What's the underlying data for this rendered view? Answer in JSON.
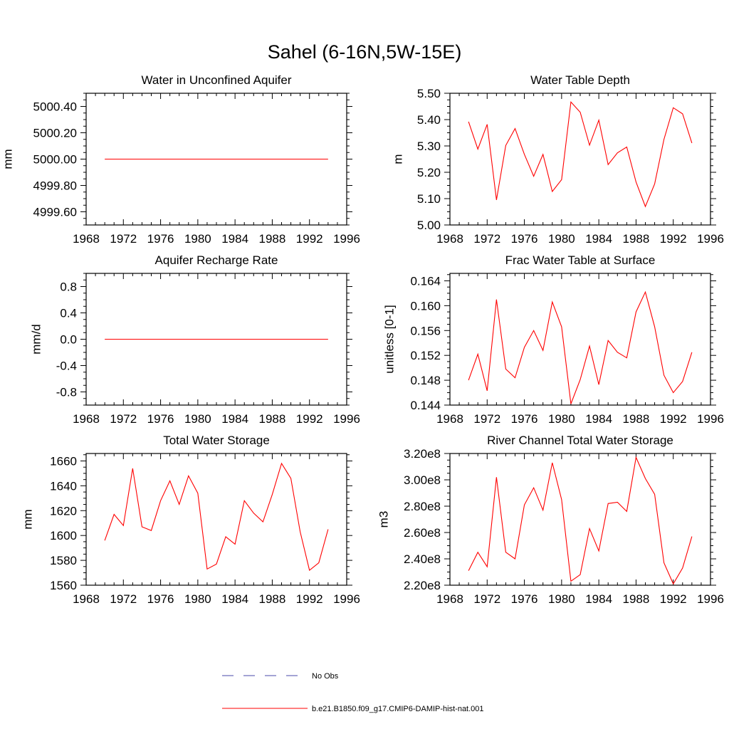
{
  "figure": {
    "title": "Sahel (6-16N,5W-15E)"
  },
  "legend": {
    "placement": "bottom-center",
    "entries": [
      {
        "label": "No Obs",
        "color": "#4a4aa8",
        "style": "dashed"
      },
      {
        "label": "b.e21.B1850.f09_g17.CMIP6-DAMIP-hist-nat.001",
        "color": "#ff0000",
        "style": "solid"
      }
    ]
  },
  "chart_data": [
    {
      "type": "line",
      "title": "Water in Unconfined Aquifer",
      "ylabel": "mm",
      "xlim": [
        1968,
        1996
      ],
      "ylim": [
        4999.5,
        5000.5
      ],
      "yticks": [
        4999.6,
        4999.8,
        5000.0,
        5000.2,
        5000.4
      ],
      "ytick_labels": [
        "4999.60",
        "4999.80",
        "5000.00",
        "5000.20",
        "5000.40"
      ],
      "xticks": [
        1968,
        1972,
        1976,
        1980,
        1984,
        1988,
        1992,
        1996
      ],
      "xtick_labels": [
        "1968",
        "1972",
        "1976",
        "1980",
        "1984",
        "1988",
        "1992",
        "1996"
      ],
      "x": [
        1970,
        1971,
        1972,
        1973,
        1974,
        1975,
        1976,
        1977,
        1978,
        1979,
        1980,
        1981,
        1982,
        1983,
        1984,
        1985,
        1986,
        1987,
        1988,
        1989,
        1990,
        1991,
        1992,
        1993,
        1994
      ],
      "series": [
        {
          "color": "#ff0000",
          "values": [
            5000,
            5000,
            5000,
            5000,
            5000,
            5000,
            5000,
            5000,
            5000,
            5000,
            5000,
            5000,
            5000,
            5000,
            5000,
            5000,
            5000,
            5000,
            5000,
            5000,
            5000,
            5000,
            5000,
            5000,
            5000
          ]
        }
      ]
    },
    {
      "type": "line",
      "title": "Water Table Depth",
      "ylabel": "m",
      "xlim": [
        1968,
        1996
      ],
      "ylim": [
        5.0,
        5.5
      ],
      "yticks": [
        5.0,
        5.1,
        5.2,
        5.3,
        5.4,
        5.5
      ],
      "ytick_labels": [
        "5.00",
        "5.10",
        "5.20",
        "5.30",
        "5.40",
        "5.50"
      ],
      "xticks": [
        1968,
        1972,
        1976,
        1980,
        1984,
        1988,
        1992,
        1996
      ],
      "xtick_labels": [
        "1968",
        "1972",
        "1976",
        "1980",
        "1984",
        "1988",
        "1992",
        "1996"
      ],
      "x": [
        1970,
        1971,
        1972,
        1973,
        1974,
        1975,
        1976,
        1977,
        1978,
        1979,
        1980,
        1981,
        1982,
        1983,
        1984,
        1985,
        1986,
        1987,
        1988,
        1989,
        1990,
        1991,
        1992,
        1993,
        1994
      ],
      "series": [
        {
          "color": "#ff0000",
          "values": [
            5.392,
            5.288,
            5.382,
            5.095,
            5.302,
            5.366,
            5.268,
            5.185,
            5.268,
            5.127,
            5.172,
            5.467,
            5.428,
            5.303,
            5.398,
            5.229,
            5.274,
            5.296,
            5.163,
            5.07,
            5.156,
            5.325,
            5.445,
            5.422,
            5.311
          ]
        }
      ]
    },
    {
      "type": "line",
      "title": "Aquifer Recharge Rate",
      "ylabel": "mm/d",
      "xlim": [
        1968,
        1996
      ],
      "ylim": [
        -1.0,
        1.0
      ],
      "yticks": [
        -0.8,
        -0.4,
        0.0,
        0.4,
        0.8
      ],
      "ytick_labels": [
        "-0.8",
        "-0.4",
        "0.0",
        "0.4",
        "0.8"
      ],
      "xticks": [
        1968,
        1972,
        1976,
        1980,
        1984,
        1988,
        1992,
        1996
      ],
      "xtick_labels": [
        "1968",
        "1972",
        "1976",
        "1980",
        "1984",
        "1988",
        "1992",
        "1996"
      ],
      "x": [
        1970,
        1971,
        1972,
        1973,
        1974,
        1975,
        1976,
        1977,
        1978,
        1979,
        1980,
        1981,
        1982,
        1983,
        1984,
        1985,
        1986,
        1987,
        1988,
        1989,
        1990,
        1991,
        1992,
        1993,
        1994
      ],
      "series": [
        {
          "color": "#ff0000",
          "values": [
            0,
            0,
            0,
            0,
            0,
            0,
            0,
            0,
            0,
            0,
            0,
            0,
            0,
            0,
            0,
            0,
            0,
            0,
            0,
            0,
            0,
            0,
            0,
            0,
            0
          ]
        }
      ]
    },
    {
      "type": "line",
      "title": "Frac Water Table at Surface",
      "ylabel": "unitless [0-1]",
      "xlim": [
        1968,
        1996
      ],
      "ylim": [
        0.144,
        0.1652
      ],
      "yticks": [
        0.144,
        0.148,
        0.152,
        0.156,
        0.16,
        0.164
      ],
      "ytick_labels": [
        "0.144",
        "0.148",
        "0.152",
        "0.156",
        "0.160",
        "0.164"
      ],
      "xticks": [
        1968,
        1972,
        1976,
        1980,
        1984,
        1988,
        1992,
        1996
      ],
      "xtick_labels": [
        "1968",
        "1972",
        "1976",
        "1980",
        "1984",
        "1988",
        "1992",
        "1996"
      ],
      "x": [
        1970,
        1971,
        1972,
        1973,
        1974,
        1975,
        1976,
        1977,
        1978,
        1979,
        1980,
        1981,
        1982,
        1983,
        1984,
        1985,
        1986,
        1987,
        1988,
        1989,
        1990,
        1991,
        1992,
        1993,
        1994
      ],
      "series": [
        {
          "color": "#ff0000",
          "values": [
            0.148,
            0.1522,
            0.1463,
            0.161,
            0.1498,
            0.1484,
            0.1533,
            0.156,
            0.1528,
            0.1606,
            0.1566,
            0.1442,
            0.1481,
            0.1535,
            0.1473,
            0.1544,
            0.1525,
            0.1516,
            0.159,
            0.1622,
            0.1566,
            0.1488,
            0.146,
            0.1478,
            0.1525
          ]
        }
      ]
    },
    {
      "type": "line",
      "title": "Total Water Storage",
      "ylabel": "mm",
      "xlim": [
        1968,
        1996
      ],
      "ylim": [
        1560,
        1666
      ],
      "yticks": [
        1560,
        1580,
        1600,
        1620,
        1640,
        1660
      ],
      "ytick_labels": [
        "1560",
        "1580",
        "1600",
        "1620",
        "1640",
        "1660"
      ],
      "xticks": [
        1968,
        1972,
        1976,
        1980,
        1984,
        1988,
        1992,
        1996
      ],
      "xtick_labels": [
        "1968",
        "1972",
        "1976",
        "1980",
        "1984",
        "1988",
        "1992",
        "1996"
      ],
      "x": [
        1970,
        1971,
        1972,
        1973,
        1974,
        1975,
        1976,
        1977,
        1978,
        1979,
        1980,
        1981,
        1982,
        1983,
        1984,
        1985,
        1986,
        1987,
        1988,
        1989,
        1990,
        1991,
        1992,
        1993,
        1994
      ],
      "series": [
        {
          "color": "#ff0000",
          "values": [
            1596,
            1617,
            1608,
            1654,
            1607,
            1604,
            1628,
            1644,
            1625,
            1648,
            1634,
            1573,
            1577,
            1599,
            1593,
            1628,
            1618,
            1611,
            1633,
            1658,
            1646,
            1603,
            1572,
            1578,
            1605
          ]
        }
      ]
    },
    {
      "type": "line",
      "title": "River Channel Total Water Storage",
      "ylabel": "m3",
      "xlim": [
        1968,
        1996
      ],
      "ylim": [
        220000000.0,
        320000000.0
      ],
      "yticks": [
        220000000.0,
        240000000.0,
        260000000.0,
        280000000.0,
        300000000.0,
        320000000.0
      ],
      "ytick_labels": [
        "2.20e8",
        "2.40e8",
        "2.60e8",
        "2.80e8",
        "3.00e8",
        "3.20e8"
      ],
      "xticks": [
        1968,
        1972,
        1976,
        1980,
        1984,
        1988,
        1992,
        1996
      ],
      "xtick_labels": [
        "1968",
        "1972",
        "1976",
        "1980",
        "1984",
        "1988",
        "1992",
        "1996"
      ],
      "x": [
        1970,
        1971,
        1972,
        1973,
        1974,
        1975,
        1976,
        1977,
        1978,
        1979,
        1980,
        1981,
        1982,
        1983,
        1984,
        1985,
        1986,
        1987,
        1988,
        1989,
        1990,
        1991,
        1992,
        1993,
        1994
      ],
      "series": [
        {
          "color": "#ff0000",
          "values": [
            231000000.0,
            245000000.0,
            234000000.0,
            302000000.0,
            245000000.0,
            240000000.0,
            281000000.0,
            294000000.0,
            277000000.0,
            313000000.0,
            285000000.0,
            223000000.0,
            228000000.0,
            263000000.0,
            246000000.0,
            282000000.0,
            283000000.0,
            276000000.0,
            317000000.0,
            301000000.0,
            289000000.0,
            237000000.0,
            221000000.0,
            233000000.0,
            257000000.0
          ]
        }
      ]
    }
  ]
}
